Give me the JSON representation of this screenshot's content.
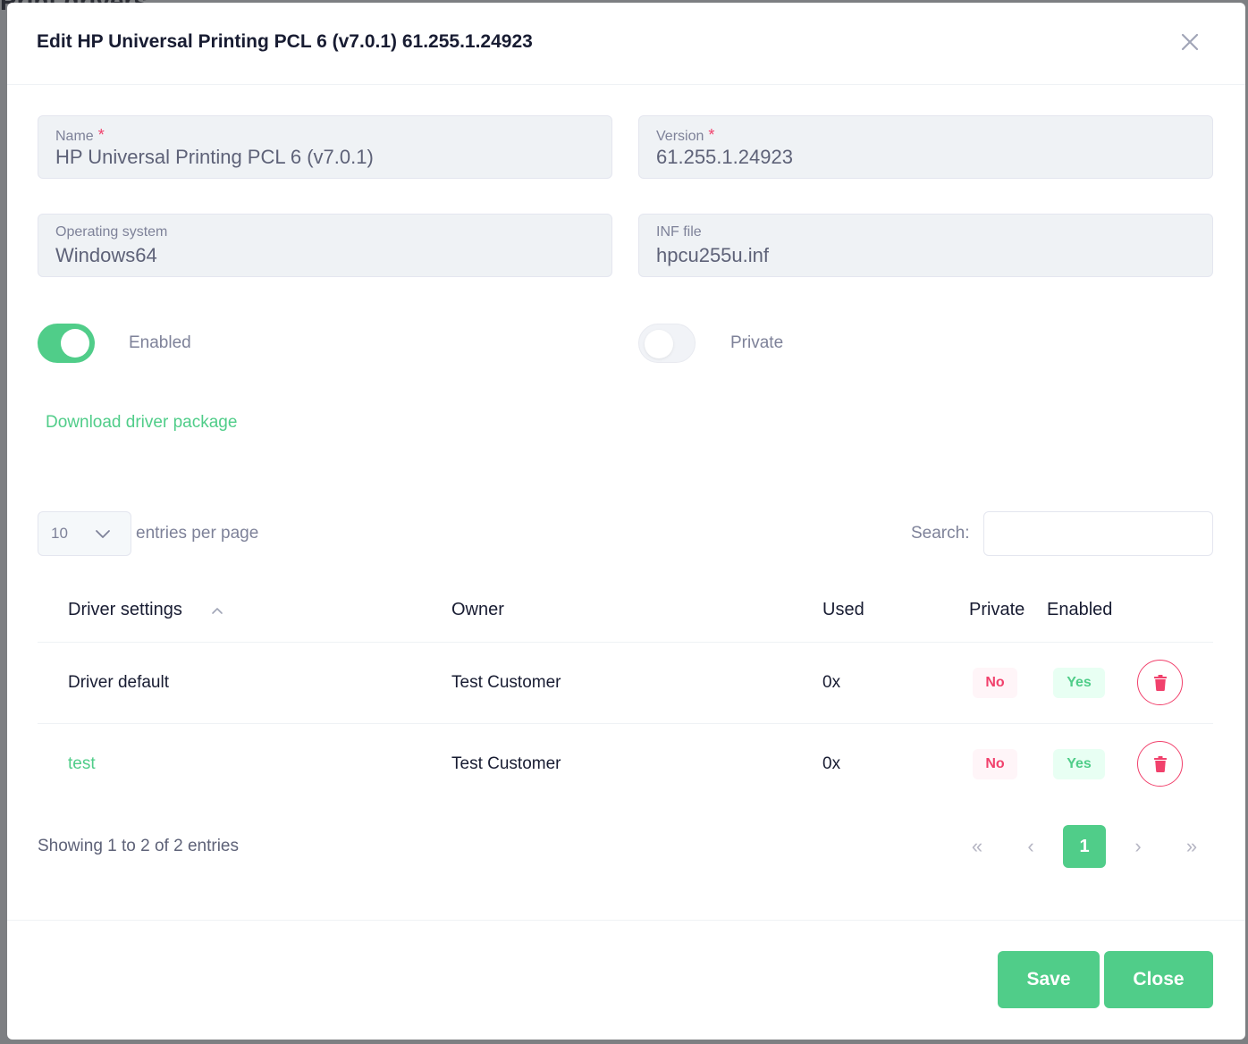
{
  "background": {
    "page_heading": "Print drivers"
  },
  "modal": {
    "title": "Edit HP Universal Printing PCL 6 (v7.0.1) 61.255.1.24923"
  },
  "form": {
    "name": {
      "label": "Name",
      "required_mark": "*",
      "value": "HP Universal Printing PCL 6 (v7.0.1)"
    },
    "version": {
      "label": "Version",
      "required_mark": "*",
      "value": "61.255.1.24923"
    },
    "os": {
      "label": "Operating system",
      "value": "Windows64"
    },
    "inf": {
      "label": "INF file",
      "value": "hpcu255u.inf"
    },
    "enabled": {
      "label": "Enabled",
      "checked": true
    },
    "private": {
      "label": "Private",
      "checked": false
    },
    "download_link": "Download driver package"
  },
  "table_controls": {
    "page_size": "10",
    "entries_label": "entries per page",
    "search_label": "Search:",
    "search_value": ""
  },
  "table": {
    "headers": {
      "settings": "Driver settings",
      "owner": "Owner",
      "used": "Used",
      "private": "Private",
      "enabled": "Enabled"
    },
    "rows": [
      {
        "settings": "Driver default",
        "owner": "Test Customer",
        "used": "0x",
        "private": "No",
        "enabled": "Yes"
      },
      {
        "settings": "test",
        "owner": "Test Customer",
        "used": "0x",
        "private": "No",
        "enabled": "Yes"
      }
    ]
  },
  "pagination": {
    "info": "Showing 1 to 2 of 2 entries",
    "first": "«",
    "prev": "‹",
    "current": "1",
    "next": "›",
    "last": "»"
  },
  "footer": {
    "save_label": "Save",
    "close_label": "Close"
  },
  "colors": {
    "accent": "#50cd89",
    "danger": "#f1416c"
  }
}
